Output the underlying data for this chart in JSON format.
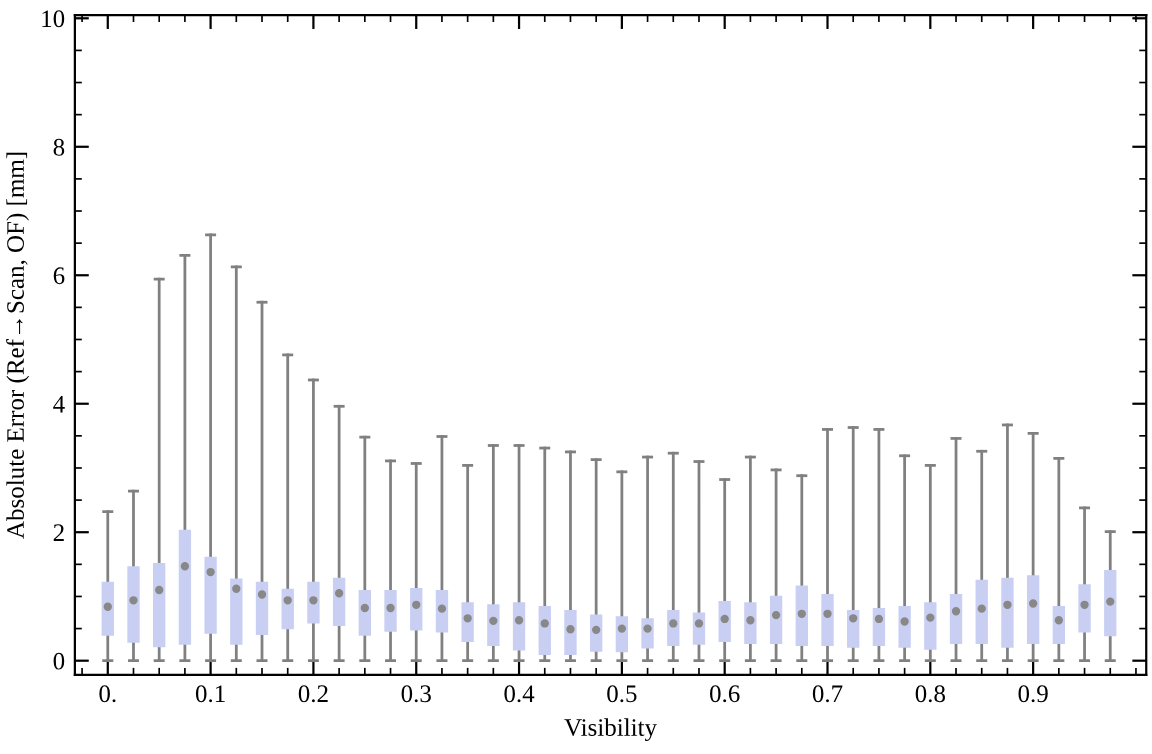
{
  "chart_data": {
    "type": "box",
    "xlabel": "Visibility",
    "ylabel": "Absolute Error (Ref→Scan, OF) [mm]",
    "x": [
      0,
      0.025,
      0.05,
      0.075,
      0.1,
      0.125,
      0.15,
      0.175,
      0.2,
      0.225,
      0.25,
      0.275,
      0.3,
      0.325,
      0.35,
      0.375,
      0.4,
      0.425,
      0.45,
      0.475,
      0.5,
      0.525,
      0.55,
      0.575,
      0.6,
      0.625,
      0.65,
      0.675,
      0.7,
      0.725,
      0.75,
      0.775,
      0.8,
      0.825,
      0.85,
      0.875,
      0.9,
      0.925,
      0.95,
      0.975
    ],
    "color": "#c9cff2",
    "boxes": [
      {
        "low": 0,
        "q1": 0.39,
        "median": 0.84,
        "q3": 1.23,
        "high": 2.32
      },
      {
        "low": 0,
        "q1": 0.28,
        "median": 0.94,
        "q3": 1.47,
        "high": 2.64
      },
      {
        "low": 0,
        "q1": 0.21,
        "median": 1.1,
        "q3": 1.52,
        "high": 5.94
      },
      {
        "low": 0,
        "q1": 0.25,
        "median": 1.47,
        "q3": 2.04,
        "high": 6.31
      },
      {
        "low": 0,
        "q1": 0.42,
        "median": 1.38,
        "q3": 1.62,
        "high": 6.63
      },
      {
        "low": 0,
        "q1": 0.25,
        "median": 1.12,
        "q3": 1.28,
        "high": 6.13
      },
      {
        "low": 0,
        "q1": 0.4,
        "median": 1.03,
        "q3": 1.23,
        "high": 5.58
      },
      {
        "low": 0,
        "q1": 0.49,
        "median": 0.94,
        "q3": 1.12,
        "high": 4.76
      },
      {
        "low": 0,
        "q1": 0.58,
        "median": 0.94,
        "q3": 1.23,
        "high": 4.37
      },
      {
        "low": 0,
        "q1": 0.54,
        "median": 1.05,
        "q3": 1.29,
        "high": 3.96
      },
      {
        "low": 0,
        "q1": 0.39,
        "median": 0.82,
        "q3": 1.1,
        "high": 3.48
      },
      {
        "low": 0,
        "q1": 0.45,
        "median": 0.82,
        "q3": 1.1,
        "high": 3.11
      },
      {
        "low": 0,
        "q1": 0.47,
        "median": 0.87,
        "q3": 1.13,
        "high": 3.07
      },
      {
        "low": 0,
        "q1": 0.44,
        "median": 0.81,
        "q3": 1.1,
        "high": 3.49
      },
      {
        "low": 0,
        "q1": 0.29,
        "median": 0.66,
        "q3": 0.91,
        "high": 3.04
      },
      {
        "low": 0,
        "q1": 0.23,
        "median": 0.62,
        "q3": 0.88,
        "high": 3.35
      },
      {
        "low": 0,
        "q1": 0.16,
        "median": 0.63,
        "q3": 0.91,
        "high": 3.35
      },
      {
        "low": 0,
        "q1": 0.09,
        "median": 0.58,
        "q3": 0.85,
        "high": 3.31
      },
      {
        "low": 0,
        "q1": 0.09,
        "median": 0.49,
        "q3": 0.79,
        "high": 3.25
      },
      {
        "low": 0,
        "q1": 0.14,
        "median": 0.48,
        "q3": 0.72,
        "high": 3.13
      },
      {
        "low": 0,
        "q1": 0.13,
        "median": 0.5,
        "q3": 0.69,
        "high": 2.94
      },
      {
        "low": 0,
        "q1": 0.19,
        "median": 0.5,
        "q3": 0.66,
        "high": 3.17
      },
      {
        "low": 0,
        "q1": 0.23,
        "median": 0.58,
        "q3": 0.79,
        "high": 3.23
      },
      {
        "low": 0,
        "q1": 0.25,
        "median": 0.58,
        "q3": 0.75,
        "high": 3.1
      },
      {
        "low": 0,
        "q1": 0.29,
        "median": 0.65,
        "q3": 0.93,
        "high": 2.82
      },
      {
        "low": 0,
        "q1": 0.26,
        "median": 0.63,
        "q3": 0.91,
        "high": 3.17
      },
      {
        "low": 0,
        "q1": 0.26,
        "median": 0.71,
        "q3": 1.01,
        "high": 2.97
      },
      {
        "low": 0,
        "q1": 0.23,
        "median": 0.73,
        "q3": 1.17,
        "high": 2.88
      },
      {
        "low": 0,
        "q1": 0.23,
        "median": 0.73,
        "q3": 1.04,
        "high": 3.6
      },
      {
        "low": 0,
        "q1": 0.2,
        "median": 0.66,
        "q3": 0.79,
        "high": 3.63
      },
      {
        "low": 0,
        "q1": 0.23,
        "median": 0.65,
        "q3": 0.82,
        "high": 3.6
      },
      {
        "low": 0,
        "q1": 0.2,
        "median": 0.61,
        "q3": 0.85,
        "high": 3.19
      },
      {
        "low": 0,
        "q1": 0.17,
        "median": 0.67,
        "q3": 0.91,
        "high": 3.04
      },
      {
        "low": 0,
        "q1": 0.26,
        "median": 0.77,
        "q3": 1.04,
        "high": 3.46
      },
      {
        "low": 0,
        "q1": 0.26,
        "median": 0.81,
        "q3": 1.26,
        "high": 3.26
      },
      {
        "low": 0,
        "q1": 0.2,
        "median": 0.87,
        "q3": 1.29,
        "high": 3.67
      },
      {
        "low": 0,
        "q1": 0.26,
        "median": 0.89,
        "q3": 1.33,
        "high": 3.54
      },
      {
        "low": 0,
        "q1": 0.26,
        "median": 0.63,
        "q3": 0.85,
        "high": 3.15
      },
      {
        "low": 0,
        "q1": 0.44,
        "median": 0.87,
        "q3": 1.19,
        "high": 2.38
      },
      {
        "low": 0,
        "q1": 0.38,
        "median": 0.92,
        "q3": 1.41,
        "high": 2.01
      }
    ],
    "xlim": [
      -0.032,
      1.01
    ],
    "xticks": [
      {
        "value": 0,
        "label": "0."
      },
      0.1,
      0.2,
      0.3,
      0.4,
      0.5,
      0.6,
      0.7,
      0.8,
      0.9
    ],
    "ylim": [
      -0.22,
      10.05
    ],
    "yticks": [
      0,
      2,
      4,
      6,
      8,
      10
    ],
    "grid": false
  }
}
